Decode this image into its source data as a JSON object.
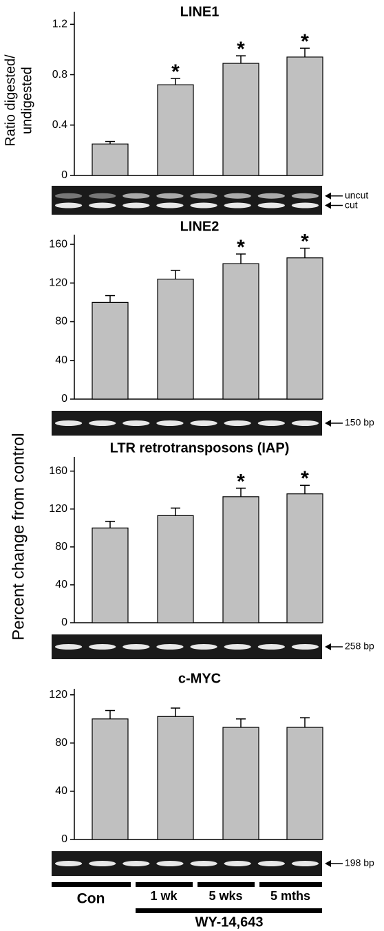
{
  "chart_data": [
    {
      "type": "bar",
      "title": "LINE1",
      "ylabel": [
        "Ratio digested/",
        "undigested"
      ],
      "color": "#c0c0c0",
      "ylim": [
        0,
        1.3
      ],
      "yticks": [
        0,
        0.4,
        0.8,
        1.2
      ],
      "values": [
        0.25,
        0.72,
        0.89,
        0.94
      ],
      "errors": [
        0.02,
        0.05,
        0.06,
        0.07
      ],
      "annotations": [
        null,
        "*",
        "*",
        "*"
      ]
    },
    {
      "type": "bar",
      "title": "LINE2",
      "color": "#c0c0c0",
      "ylim": [
        0,
        170
      ],
      "yticks": [
        0,
        40,
        80,
        120,
        160
      ],
      "values": [
        100,
        124,
        140,
        146
      ],
      "errors": [
        7,
        9,
        10,
        10
      ],
      "annotations": [
        null,
        null,
        "*",
        "*"
      ]
    },
    {
      "type": "bar",
      "title": "LTR retrotransposons (IAP)",
      "color": "#c0c0c0",
      "ylim": [
        0,
        175
      ],
      "yticks": [
        0,
        40,
        80,
        120,
        160
      ],
      "values": [
        100,
        113,
        133,
        136
      ],
      "errors": [
        7,
        8,
        9,
        9
      ],
      "annotations": [
        null,
        null,
        "*",
        "*"
      ]
    },
    {
      "type": "bar",
      "title": "c-MYC",
      "color": "#c0c0c0",
      "ylim": [
        0,
        125
      ],
      "yticks": [
        0,
        40,
        80,
        120
      ],
      "values": [
        100,
        102,
        93,
        93
      ],
      "errors": [
        7,
        7,
        7,
        8
      ],
      "annotations": [
        null,
        null,
        null,
        null
      ]
    }
  ],
  "shared_ylabel": "Percent change from control",
  "categories": [
    "Con",
    "1 wk",
    "5 wks",
    "5 mths"
  ],
  "group_label": "WY-14,643",
  "gel_labels": [
    [
      "uncut",
      "cut"
    ],
    [
      "150 bp"
    ],
    [
      "258 bp"
    ],
    [
      "198 bp"
    ]
  ]
}
